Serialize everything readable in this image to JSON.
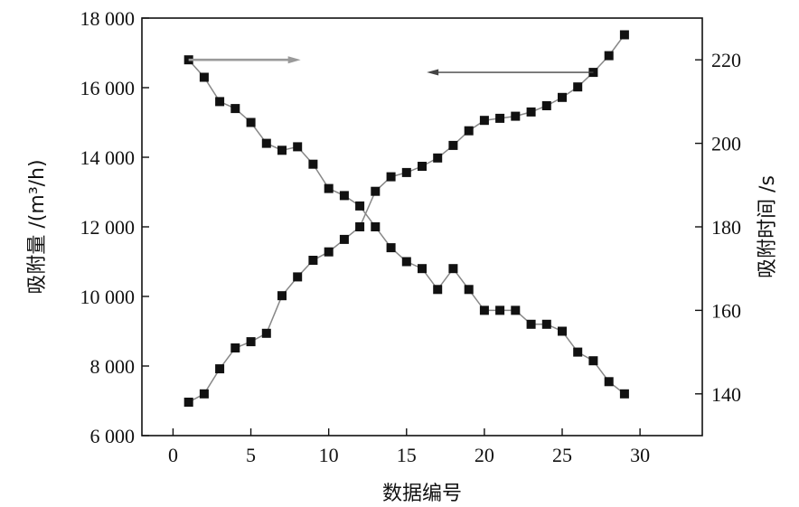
{
  "chart_data": {
    "type": "line",
    "xlabel": "数据编号",
    "ylabel_left": "吸附量 /(m³/h)",
    "ylabel_right": "吸附时间 /s",
    "x_range": [
      -2,
      34
    ],
    "ylim_left": [
      6000,
      18000
    ],
    "ylim_right": [
      130,
      230
    ],
    "x_ticks": [
      0,
      5,
      10,
      15,
      20,
      25,
      30
    ],
    "x_tick_labels": [
      "0",
      "5",
      "10",
      "15",
      "20",
      "25",
      "30"
    ],
    "y_left_ticks": [
      6000,
      8000,
      10000,
      12000,
      14000,
      16000,
      18000
    ],
    "y_left_tick_labels": [
      "6 000",
      "8 000",
      "10 000",
      "12 000",
      "14 000",
      "16 000",
      "18 000"
    ],
    "y_right_ticks": [
      140,
      160,
      180,
      200,
      220
    ],
    "y_right_tick_labels": [
      "140",
      "160",
      "180",
      "200",
      "220"
    ],
    "grid": false,
    "series": [
      {
        "axis": "left",
        "x": [
          1,
          2,
          3,
          4,
          5,
          6,
          7,
          8,
          9,
          10,
          11,
          12,
          13,
          14,
          15,
          16,
          17,
          18,
          19,
          20,
          21,
          22,
          23,
          24,
          25,
          26,
          27,
          28,
          29
        ],
        "values": [
          16800,
          16300,
          15600,
          15400,
          15000,
          14400,
          14200,
          14300,
          13800,
          13100,
          12900,
          12600,
          12000,
          11400,
          11000,
          10800,
          10200,
          10800,
          10200,
          9600,
          9600,
          9600,
          9200,
          9200,
          9000,
          8400,
          8150,
          7550,
          7200
        ]
      },
      {
        "axis": "right",
        "x": [
          1,
          2,
          3,
          4,
          5,
          6,
          7,
          8,
          9,
          10,
          11,
          12,
          13,
          14,
          15,
          16,
          17,
          18,
          19,
          20,
          21,
          22,
          23,
          24,
          25,
          26,
          27,
          28,
          29
        ],
        "values": [
          138,
          140,
          146,
          151,
          152.5,
          154.5,
          163.5,
          168,
          172,
          174,
          177,
          180,
          188.5,
          192,
          193,
          194.5,
          196.5,
          199.5,
          203,
          205.5,
          206,
          206.5,
          207.5,
          209,
          211,
          213.5,
          217,
          221,
          226
        ]
      }
    ],
    "annotations": [
      {
        "type": "arrow",
        "direction": "right",
        "color": "#9a9a9a",
        "indicates_axis": "right"
      },
      {
        "type": "arrow",
        "direction": "left",
        "color": "#444444",
        "indicates_axis": "left"
      }
    ],
    "line_color": "#888888",
    "marker_color": "#111111"
  }
}
